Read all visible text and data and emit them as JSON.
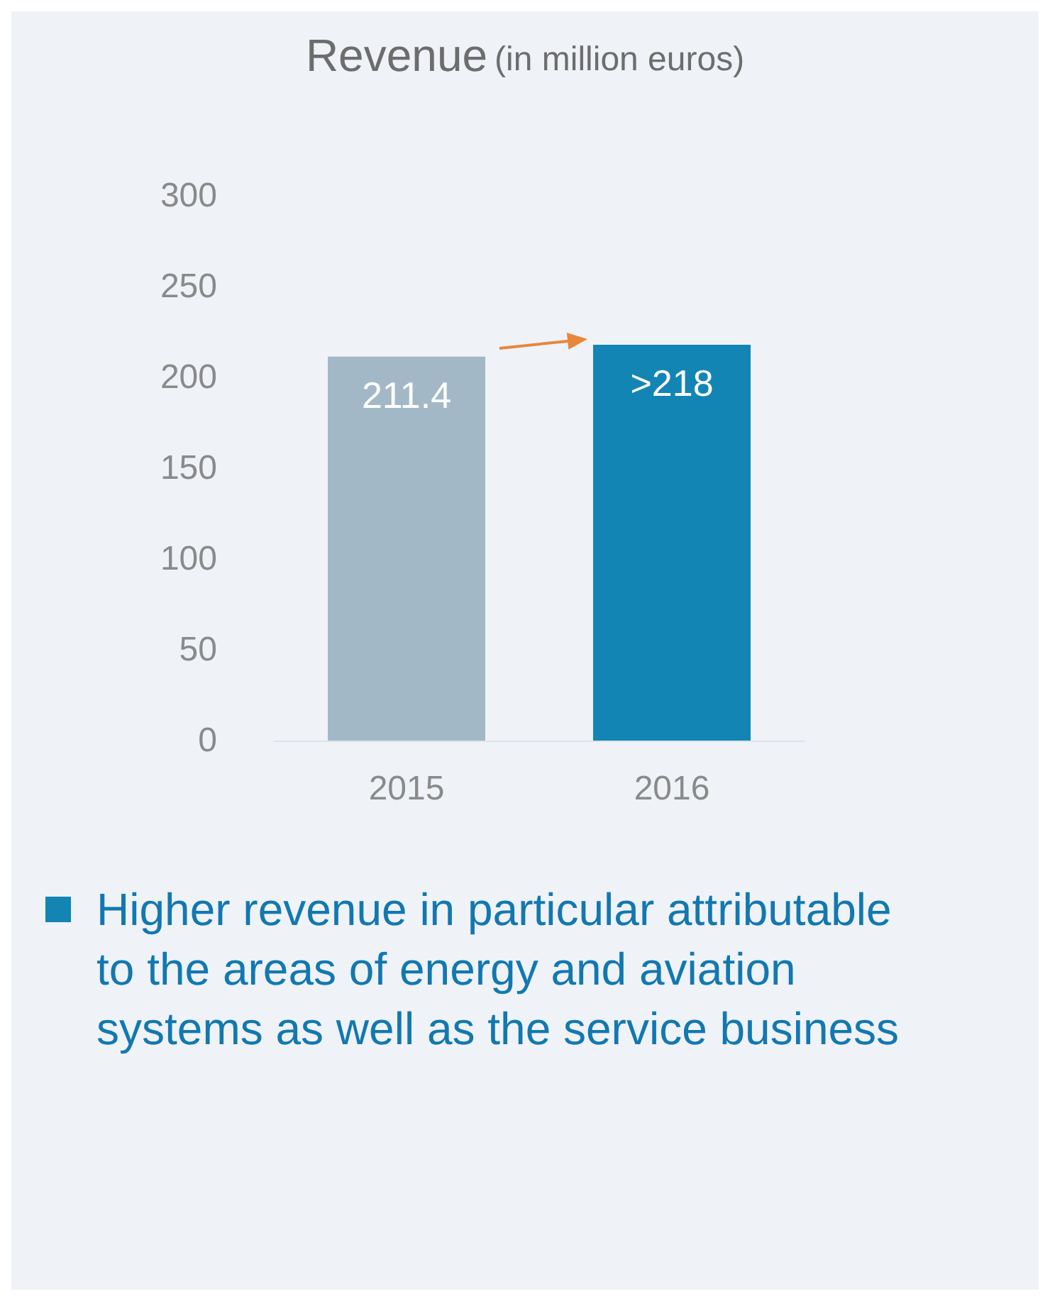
{
  "chart_data": {
    "type": "bar",
    "title": "Revenue",
    "subtitle": "(in million euros)",
    "categories": [
      "2015",
      "2016"
    ],
    "values": [
      211.4,
      218
    ],
    "colors": [
      "#a3b8c6",
      "#1285b5"
    ],
    "value_labels": [
      "211.4",
      ">218"
    ],
    "ylim": [
      0,
      300
    ],
    "yticks": [
      0,
      50,
      100,
      150,
      200,
      250,
      300
    ],
    "grid": false,
    "annotations": [
      "Higher revenue in particular attributable to the areas of energy and aviation systems as well as the service business"
    ]
  }
}
